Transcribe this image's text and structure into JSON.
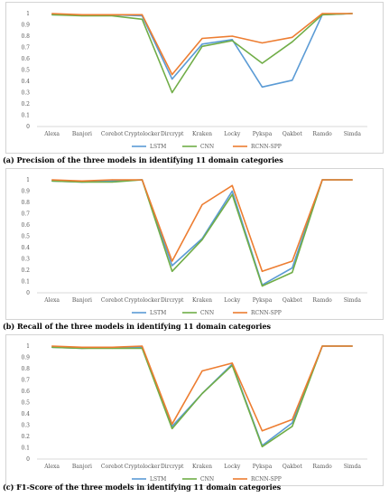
{
  "chart_data": [
    {
      "type": "line",
      "categories": [
        "Alexa",
        "Banjori",
        "Corebot",
        "Cryptolocker",
        "Dircrypt",
        "Kraken",
        "Locky",
        "Pykspa",
        "Qakbot",
        "Ramdo",
        "Simda"
      ],
      "ylim": [
        0,
        1
      ],
      "yticks": [
        "0",
        "0.1",
        "0.2",
        "0.3",
        "0.4",
        "0.5",
        "0.6",
        "0.7",
        "0.8",
        "0.9",
        "1"
      ],
      "grid": false,
      "legend": "bottom",
      "series": [
        {
          "name": "LSTM",
          "color": "#5b9bd5",
          "values": [
            0.99,
            0.99,
            0.99,
            0.98,
            0.42,
            0.73,
            0.77,
            0.35,
            0.41,
            0.99,
            1.0
          ]
        },
        {
          "name": "CNN",
          "color": "#70ad47",
          "values": [
            0.99,
            0.98,
            0.98,
            0.95,
            0.3,
            0.71,
            0.76,
            0.56,
            0.75,
            0.99,
            1.0
          ]
        },
        {
          "name": "RCNN-SPP",
          "color": "#ed7d31",
          "values": [
            1.0,
            0.99,
            0.99,
            0.99,
            0.46,
            0.78,
            0.8,
            0.74,
            0.79,
            1.0,
            1.0
          ]
        }
      ],
      "caption": "(a) Precision of the three models in identifying 11 domain categories"
    },
    {
      "type": "line",
      "categories": [
        "Alexa",
        "Banjori",
        "Corebot",
        "Cryptolocker",
        "Dircrypt",
        "Kraken",
        "Locky",
        "Pykspa",
        "Qakbot",
        "Ramdo",
        "Simda"
      ],
      "ylim": [
        0,
        1
      ],
      "yticks": [
        "0",
        "0.1",
        "0.2",
        "0.3",
        "0.4",
        "0.5",
        "0.6",
        "0.7",
        "0.8",
        "0.9",
        "1"
      ],
      "grid": false,
      "legend": "bottom",
      "series": [
        {
          "name": "LSTM",
          "color": "#5b9bd5",
          "values": [
            0.99,
            0.98,
            0.99,
            1.0,
            0.24,
            0.48,
            0.9,
            0.07,
            0.22,
            1.0,
            1.0
          ]
        },
        {
          "name": "CNN",
          "color": "#70ad47",
          "values": [
            0.99,
            0.98,
            0.98,
            1.0,
            0.19,
            0.47,
            0.87,
            0.06,
            0.18,
            1.0,
            1.0
          ]
        },
        {
          "name": "RCNN-SPP",
          "color": "#ed7d31",
          "values": [
            1.0,
            0.99,
            1.0,
            1.0,
            0.28,
            0.78,
            0.95,
            0.19,
            0.28,
            1.0,
            1.0
          ]
        }
      ],
      "caption": "(b) Recall of the three models in identifying 11 domain categories"
    },
    {
      "type": "line",
      "categories": [
        "Alexa",
        "Banjori",
        "Corebot",
        "Cryptolocker",
        "Dircrypt",
        "Kraken",
        "Locky",
        "Pykspa",
        "Qakbot",
        "Ramdo",
        "Simda"
      ],
      "ylim": [
        0,
        1
      ],
      "yticks": [
        "0",
        "0.1",
        "0.2",
        "0.3",
        "0.4",
        "0.5",
        "0.6",
        "0.7",
        "0.8",
        "0.9",
        "1"
      ],
      "grid": false,
      "legend": "bottom",
      "series": [
        {
          "name": "LSTM",
          "color": "#5b9bd5",
          "values": [
            0.99,
            0.98,
            0.99,
            0.99,
            0.29,
            0.58,
            0.84,
            0.12,
            0.32,
            1.0,
            1.0
          ]
        },
        {
          "name": "CNN",
          "color": "#70ad47",
          "values": [
            0.99,
            0.98,
            0.98,
            0.98,
            0.27,
            0.58,
            0.83,
            0.11,
            0.29,
            1.0,
            1.0
          ]
        },
        {
          "name": "RCNN-SPP",
          "color": "#ed7d31",
          "values": [
            1.0,
            0.99,
            0.99,
            1.0,
            0.31,
            0.78,
            0.85,
            0.25,
            0.35,
            1.0,
            1.0
          ]
        }
      ],
      "caption": "(c) F1-Score of the three models in identifying 11 domain categories"
    }
  ]
}
